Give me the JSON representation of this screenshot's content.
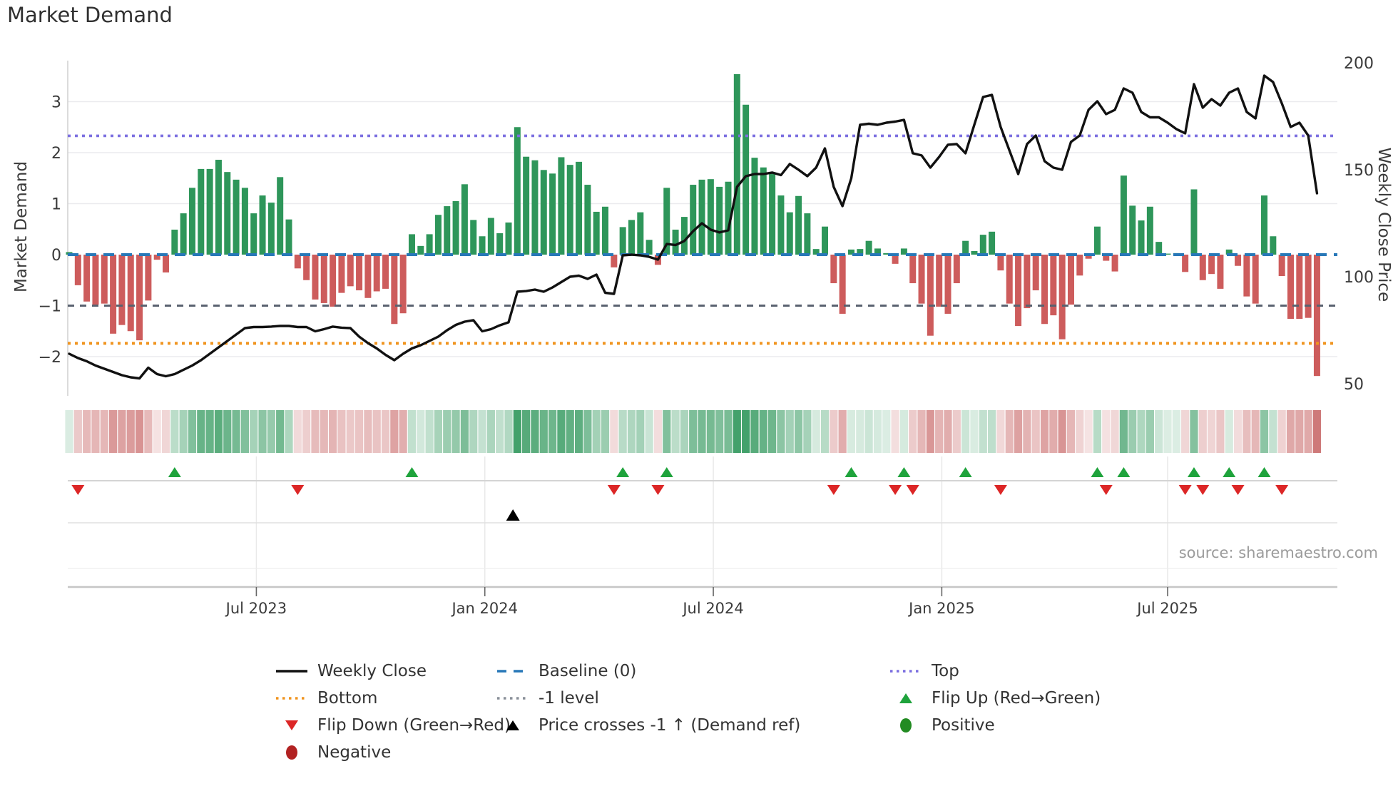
{
  "title": "Market Demand",
  "source": "source: sharemaestro.com",
  "axes": {
    "left": {
      "label": "Market Demand",
      "ticks": [
        "3",
        "2",
        "1",
        "0",
        "−1",
        "−2"
      ],
      "tick_values": [
        3,
        2,
        1,
        0,
        -1,
        -2
      ]
    },
    "right": {
      "label": "Weekly Close Price",
      "ticks": [
        "200",
        "150",
        "100",
        "50"
      ],
      "tick_values": [
        200,
        150,
        100,
        50
      ]
    },
    "x": {
      "ticks": [
        {
          "label": "Jul 2023",
          "week": 21.3
        },
        {
          "label": "Jan 2024",
          "week": 47.3
        },
        {
          "label": "Jul 2024",
          "week": 73.3
        },
        {
          "label": "Jan 2025",
          "week": 99.3
        },
        {
          "label": "Jul 2025",
          "week": 125.0
        }
      ]
    }
  },
  "chart_data": {
    "type": "bar",
    "subtype": "weekly bar + line dual-axis with signal heatmap and flip markers",
    "weeks_total": 143,
    "x_ticks": [
      {
        "label": "Jul 2023",
        "week": 21.3
      },
      {
        "label": "Jan 2024",
        "week": 47.3
      },
      {
        "label": "Jul 2024",
        "week": 73.3
      },
      {
        "label": "Jan 2025",
        "week": 99.3
      },
      {
        "label": "Jul 2025",
        "week": 125.0
      }
    ],
    "ylim_left": [
      -2.77,
      3.8
    ],
    "ylim_right": [
      44,
      201
    ],
    "grid_left_values": [
      3,
      2,
      1,
      -2
    ],
    "ref_lines": {
      "top": 2.33,
      "baseline": 0.0,
      "minus1": -1.0,
      "bottom": -1.74
    },
    "price_cross_up_week": 50.5,
    "series": [
      {
        "name": "Market Demand",
        "type": "bar",
        "axis": "left",
        "values": [
          0.05,
          -0.6,
          -0.92,
          -0.98,
          -0.96,
          -1.55,
          -1.38,
          -1.5,
          -1.68,
          -0.9,
          -0.1,
          -0.35,
          0.49,
          0.81,
          1.31,
          1.68,
          1.68,
          1.86,
          1.62,
          1.47,
          1.31,
          0.81,
          1.16,
          1.02,
          1.52,
          0.69,
          -0.27,
          -0.5,
          -0.88,
          -0.95,
          -1.02,
          -0.75,
          -0.62,
          -0.7,
          -0.85,
          -0.72,
          -0.67,
          -1.36,
          -1.15,
          0.4,
          0.17,
          0.4,
          0.78,
          0.95,
          1.05,
          1.38,
          0.68,
          0.36,
          0.72,
          0.42,
          0.63,
          2.5,
          1.92,
          1.85,
          1.66,
          1.59,
          1.91,
          1.76,
          1.82,
          1.37,
          0.84,
          0.94,
          -0.25,
          0.54,
          0.68,
          0.83,
          0.29,
          -0.2,
          1.31,
          0.49,
          0.74,
          1.37,
          1.47,
          1.48,
          1.33,
          1.43,
          3.54,
          2.94,
          1.9,
          1.71,
          1.59,
          1.16,
          0.83,
          1.15,
          0.81,
          0.11,
          0.55,
          -0.56,
          -1.16,
          0.1,
          0.11,
          0.27,
          0.12,
          0.03,
          -0.18,
          0.12,
          -0.56,
          -0.96,
          -1.59,
          -1.02,
          -1.16,
          -0.56,
          0.27,
          0.07,
          0.39,
          0.45,
          -0.31,
          -0.96,
          -1.4,
          -1.05,
          -0.7,
          -1.36,
          -1.19,
          -1.66,
          -0.98,
          -0.41,
          -0.08,
          0.55,
          -0.12,
          -0.33,
          1.55,
          0.96,
          0.67,
          0.94,
          0.25,
          0.02,
          0.03,
          -0.34,
          1.28,
          -0.5,
          -0.38,
          -0.67,
          0.1,
          -0.22,
          -0.82,
          -0.96,
          1.16,
          0.36,
          -0.42,
          -1.26,
          -1.26,
          -1.24,
          -2.38
        ]
      },
      {
        "name": "Weekly Close",
        "type": "line",
        "axis": "right",
        "values": [
          64,
          62,
          60.5,
          58.5,
          57,
          55.5,
          54,
          53,
          52.5,
          57.5,
          54.5,
          53.5,
          54.5,
          56.5,
          58.5,
          61,
          64,
          67,
          70,
          73,
          76,
          76.5,
          76.5,
          76.7,
          77,
          77,
          76.5,
          76.5,
          74.5,
          75.5,
          76.7,
          76.2,
          76,
          72,
          69,
          66.5,
          63.5,
          61,
          64,
          66.5,
          68,
          70,
          72,
          75,
          77.5,
          79,
          79.7,
          74.5,
          75.5,
          77.3,
          78.7,
          93,
          93.3,
          94,
          93,
          95,
          97.5,
          100,
          100.5,
          99,
          101,
          92.5,
          92,
          110,
          110.3,
          110,
          109.3,
          108,
          115.3,
          114.8,
          116.7,
          121.3,
          125,
          122,
          120.7,
          121.7,
          142,
          147,
          148,
          148,
          148.7,
          147.5,
          152.7,
          150,
          147,
          151,
          160,
          142,
          133,
          146,
          171,
          171.5,
          171,
          172,
          172.5,
          173.3,
          157.7,
          156.7,
          151,
          156,
          161.7,
          162,
          157.7,
          171,
          184,
          185,
          170,
          159,
          148,
          162,
          166,
          154,
          151,
          150,
          163,
          166,
          178,
          182,
          176,
          178,
          188,
          186,
          177,
          174.5,
          174.5,
          172,
          169,
          167,
          190,
          179,
          183,
          180,
          186,
          188,
          177,
          174,
          194,
          191,
          181,
          170,
          172,
          166,
          139
        ]
      }
    ],
    "marker_logic": {
      "flip_up": "week where demand sign changes red to green",
      "flip_down": "week where demand sign changes green to red",
      "price_cross": "single black triangle where price crosses -1 demand reference upward"
    }
  },
  "ref_lines": {
    "top": {
      "label": "Top",
      "value": 2.33,
      "color": "#7b6fe0"
    },
    "baseline": {
      "label": "Baseline (0)",
      "value": 0.0,
      "color": "#2878b8"
    },
    "minus1": {
      "label": "-1 level",
      "value": -1.0,
      "color": "#5a6270"
    },
    "bottom": {
      "label": "Bottom",
      "value": -1.74,
      "color": "#f0941f"
    }
  },
  "legend": {
    "columns": [
      {
        "items": [
          {
            "swatch": "line",
            "color": "#111111",
            "label": "Weekly Close"
          },
          {
            "swatch": "dotted",
            "color": "#f0941f",
            "label": "Bottom"
          },
          {
            "swatch": "triangle-down",
            "color": "#dc2626",
            "label": "Flip Down (Green→Red)"
          },
          {
            "swatch": "circle",
            "color": "#b22222",
            "label": "Negative"
          }
        ]
      },
      {
        "items": [
          {
            "swatch": "dashed",
            "color": "#2878b8",
            "label": "Baseline (0)"
          },
          {
            "swatch": "dotted",
            "color": "#8a9099",
            "label": "-1 level"
          },
          {
            "swatch": "triangle-up",
            "color": "#000000",
            "label": "Price crosses -1 ↑ (Demand ref)"
          }
        ]
      },
      {
        "items": [
          {
            "swatch": "dotted",
            "color": "#7b6fe0",
            "label": "Top"
          },
          {
            "swatch": "triangle-up",
            "color": "#1fa33c",
            "label": "Flip Up (Red→Green)"
          },
          {
            "swatch": "circle",
            "color": "#228b22",
            "label": "Positive"
          }
        ]
      }
    ]
  },
  "colors": {
    "bar_positive": "#2e965a",
    "bar_negative": "#cd5c5c",
    "price_line": "#111111",
    "baseline": "#2878b8",
    "top_line": "#7b6fe0",
    "bottom_line": "#f0941f",
    "minus1_line": "#5a6270",
    "flip_up": "#1fa33c",
    "flip_down": "#dc2626",
    "positive_dot": "#228b22",
    "negative_dot": "#b22222",
    "cross_marker": "#000000",
    "heat_green": "#2e965a",
    "heat_red": "#c96a6a",
    "grid": "#ebebee",
    "spine": "#cfcfcf",
    "tick_text": "#3a3a3a"
  }
}
